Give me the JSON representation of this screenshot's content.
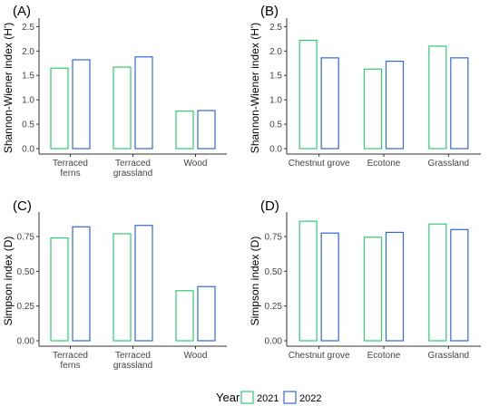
{
  "legend": {
    "title": "Year",
    "placement": "bottom",
    "entries": [
      {
        "label": "2021",
        "color": "#2ecc71"
      },
      {
        "label": "2022",
        "color": "#3366dd"
      }
    ]
  },
  "chart_data": [
    {
      "type": "bar",
      "panel_label": "(A)",
      "ylabel": "Shannon-Wiener index (H')",
      "categories": [
        "Terraced\nferns",
        "Terraced\ngrassland",
        "Wood"
      ],
      "yticks": [
        0,
        0.5,
        1,
        1.5,
        2,
        2.5
      ],
      "ytick_labels": [
        "0.0",
        "0.5",
        "1.0",
        "1.5",
        "2.0",
        "2.5"
      ],
      "ylim": [
        0,
        2.6
      ],
      "grid": false,
      "series": [
        {
          "name": "2021",
          "values": [
            1.65,
            1.67,
            0.77
          ]
        },
        {
          "name": "2022",
          "values": [
            1.82,
            1.88,
            0.78
          ]
        }
      ]
    },
    {
      "type": "bar",
      "panel_label": "(B)",
      "ylabel": "Shannon-Wiener index (H')",
      "categories": [
        "Chestnut grove",
        "Ecotone",
        "Grassland"
      ],
      "yticks": [
        0,
        0.5,
        1,
        1.5,
        2,
        2.5
      ],
      "ytick_labels": [
        "0.0",
        "0.5",
        "1.0",
        "1.5",
        "2.0",
        "2.5"
      ],
      "ylim": [
        0,
        2.6
      ],
      "grid": false,
      "series": [
        {
          "name": "2021",
          "values": [
            2.22,
            1.63,
            2.1
          ]
        },
        {
          "name": "2022",
          "values": [
            1.86,
            1.79,
            1.86
          ]
        }
      ]
    },
    {
      "type": "bar",
      "panel_label": "(C)",
      "ylabel": "Simpson index (D)",
      "categories": [
        "Terraced\nferns",
        "Terraced\ngrassland",
        "Wood"
      ],
      "yticks": [
        0,
        0.25,
        0.5,
        0.75
      ],
      "ytick_labels": [
        "0.00",
        "0.25",
        "0.50",
        "0.75"
      ],
      "ylim": [
        0,
        0.9
      ],
      "grid": false,
      "series": [
        {
          "name": "2021",
          "values": [
            0.74,
            0.77,
            0.36
          ]
        },
        {
          "name": "2022",
          "values": [
            0.82,
            0.83,
            0.39
          ]
        }
      ]
    },
    {
      "type": "bar",
      "panel_label": "(D)",
      "ylabel": "Simpson index (D)",
      "categories": [
        "Chestnut grove",
        "Ecotone",
        "Grassland"
      ],
      "yticks": [
        0,
        0.25,
        0.5,
        0.75
      ],
      "ytick_labels": [
        "0.00",
        "0.25",
        "0.50",
        "0.75"
      ],
      "ylim": [
        0,
        0.9
      ],
      "grid": false,
      "series": [
        {
          "name": "2021",
          "values": [
            0.86,
            0.745,
            0.84
          ]
        },
        {
          "name": "2022",
          "values": [
            0.775,
            0.78,
            0.8
          ]
        }
      ]
    }
  ]
}
